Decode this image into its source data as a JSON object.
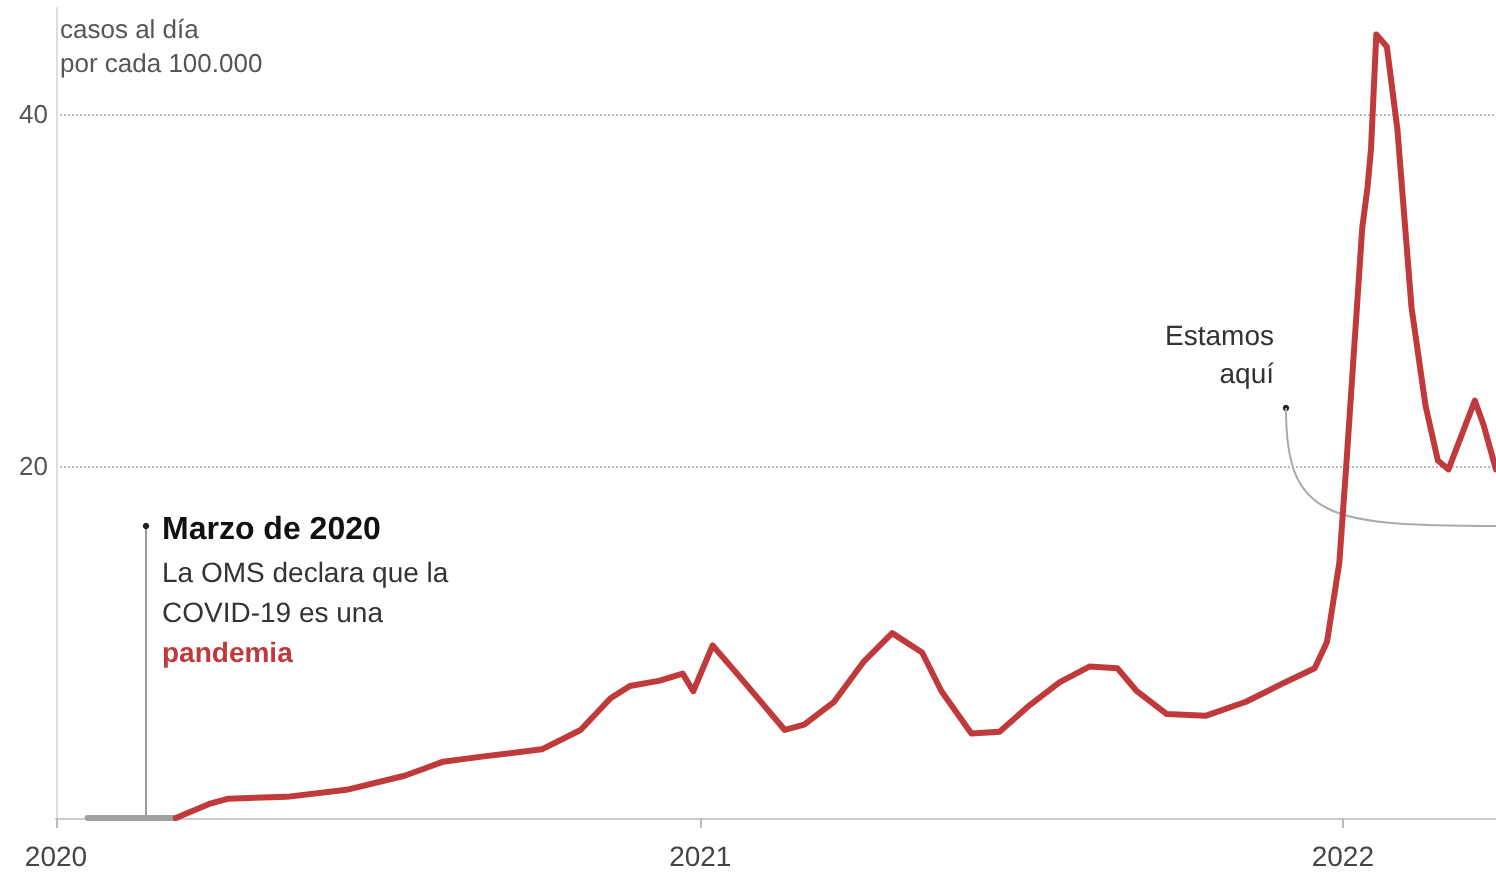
{
  "chart_data": {
    "type": "line",
    "xlim": [
      "2020-01-01",
      "2022-03-29"
    ],
    "xticks": [
      "2020",
      "2021",
      "2022"
    ],
    "ylim": [
      0,
      46
    ],
    "yticks": [
      20,
      40
    ],
    "ylabel": "casos al día\npor cada 100.000",
    "grid": "y",
    "marker": "none",
    "line_style": "solid",
    "series": [
      {
        "color": "#a0a0a0",
        "x": [
          "2020-01-19",
          "2020-03-09"
        ],
        "values": [
          0,
          0
        ]
      },
      {
        "color": "#c0393b",
        "x": [
          "2020-03-09",
          "2020-03-28",
          "2020-04-08",
          "2020-05-11",
          "2020-06-14",
          "2020-07-17",
          "2020-07-28",
          "2020-08-08",
          "2020-08-31",
          "2020-10-03",
          "2020-10-25",
          "2020-11-11",
          "2020-11-22",
          "2020-12-09",
          "2020-12-22",
          "2020-12-28",
          "2021-01-08",
          "2021-01-21",
          "2021-02-18",
          "2021-03-01",
          "2021-03-18",
          "2021-04-04",
          "2021-04-20",
          "2021-05-07",
          "2021-05-18",
          "2021-06-04",
          "2021-06-20",
          "2021-07-07",
          "2021-07-24",
          "2021-08-10",
          "2021-08-26",
          "2021-09-06",
          "2021-09-23",
          "2021-10-15",
          "2021-11-07",
          "2021-11-29",
          "2021-12-16",
          "2021-12-23",
          "2021-12-30",
          "2022-01-03",
          "2022-01-09",
          "2022-01-12",
          "2022-01-15",
          "2022-01-17",
          "2022-01-20",
          "2022-01-26",
          "2022-02-01",
          "2022-02-09",
          "2022-02-17",
          "2022-02-24",
          "2022-03-02",
          "2022-03-17",
          "2022-03-22",
          "2022-03-29"
        ],
        "values": [
          0,
          0.8,
          1.1,
          1.2,
          1.6,
          2.4,
          2.8,
          3.2,
          3.5,
          3.9,
          5.0,
          6.8,
          7.5,
          7.8,
          8.2,
          7.2,
          9.8,
          8.3,
          5.0,
          5.3,
          6.6,
          8.9,
          10.5,
          9.4,
          7.2,
          4.8,
          4.9,
          6.4,
          7.7,
          8.6,
          8.5,
          7.2,
          5.9,
          5.8,
          6.6,
          7.7,
          8.5,
          10.0,
          14.5,
          20.1,
          29.0,
          33.5,
          35.8,
          38.0,
          44.5,
          43.8,
          39.1,
          29.0,
          23.4,
          20.3,
          19.8,
          23.7,
          22.3,
          19.8
        ]
      }
    ],
    "annotations": [
      "Marzo de 2020\nLa OMS declara que la\nCOVID-19 es una\npandemia",
      "Estamos\naquí"
    ]
  }
}
